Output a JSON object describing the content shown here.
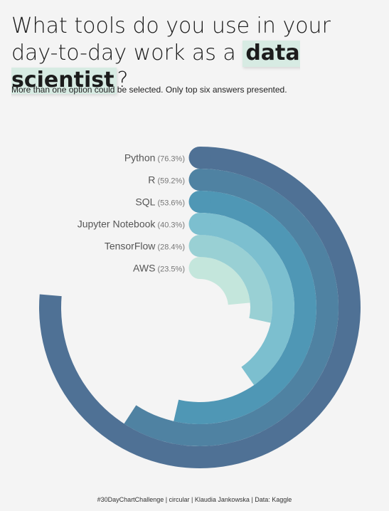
{
  "title": {
    "line1": "What tools do you use in your",
    "line2_prefix": "day-to-day work as a ",
    "line2_highlight": "data scientist",
    "line2_suffix": "?"
  },
  "subtitle": "More than one option could be selected. Only top six answers presented.",
  "caption": "#30DayChartChallenge  |  circular  |  Klaudia Jankowska | Data: Kaggle",
  "chart_data": {
    "type": "radial-bar",
    "unit": "%",
    "categories": [
      "Python",
      "R",
      "SQL",
      "Jupyter Notebook",
      "TensorFlow",
      "AWS"
    ],
    "values": [
      76.3,
      59.2,
      53.6,
      40.3,
      28.4,
      23.5
    ],
    "value_labels": [
      "(76.3%)",
      "(59.2%)",
      "(53.6%)",
      "(40.3%)",
      "(28.4%)",
      "(23.5%)"
    ],
    "colors": [
      "#4f7195",
      "#4f82a2",
      "#4f97b5",
      "#7cbfcf",
      "#99d0d4",
      "#c4e6dc"
    ],
    "range": [
      0,
      100
    ]
  }
}
